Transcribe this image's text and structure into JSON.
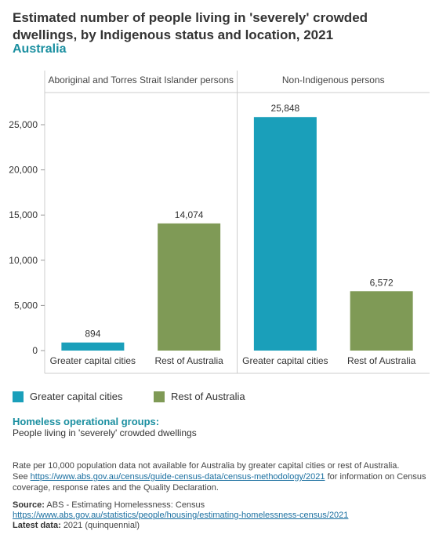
{
  "title": "Estimated number of people living in 'severely' crowded dwellings, by Indigenous status and location, 2021",
  "subtitle": "Australia",
  "chart_data": {
    "type": "bar",
    "panels": [
      {
        "name": "Aboriginal and Torres Strait Islander persons",
        "categories": [
          "Greater capital cities",
          "Rest of Australia"
        ],
        "values": [
          894,
          14074
        ],
        "labels": [
          "894",
          "14,074"
        ]
      },
      {
        "name": "Non-Indigenous persons",
        "categories": [
          "Greater capital cities",
          "Rest of Australia"
        ],
        "values": [
          25848,
          6572
        ],
        "labels": [
          "25,848",
          "6,572"
        ]
      }
    ],
    "ylim": [
      0,
      28000
    ],
    "yticks": [
      0,
      5000,
      10000,
      15000,
      20000,
      25000
    ],
    "ytick_labels": [
      "0",
      "5,000",
      "10,000",
      "15,000",
      "20,000",
      "25,000"
    ],
    "legend": [
      {
        "label": "Greater capital cities",
        "color": "#1a9fba"
      },
      {
        "label": "Rest of Australia",
        "color": "#7f9a56"
      }
    ],
    "legend_position": "bottom-left",
    "grid": false
  },
  "operational_groups": {
    "heading": "Homeless operational groups:",
    "value": "People living in 'severely' crowded dwellings"
  },
  "note": {
    "line1": "Rate per 10,000 population data not available for Australia by greater capital cities or rest of Australia.",
    "see": "See",
    "link": "https://www.abs.gov.au/census/guide-census-data/census-methodology/2021",
    "after": "for information on Census coverage, response rates and the Quality Declaration."
  },
  "source": {
    "label": "Source:",
    "text": "ABS - Estimating Homelessness: Census",
    "link": "https://www.abs.gov.au/statistics/people/housing/estimating-homelessness-census/2021",
    "latest_label": "Latest data:",
    "latest_value": "2021 (quinquennial)"
  }
}
